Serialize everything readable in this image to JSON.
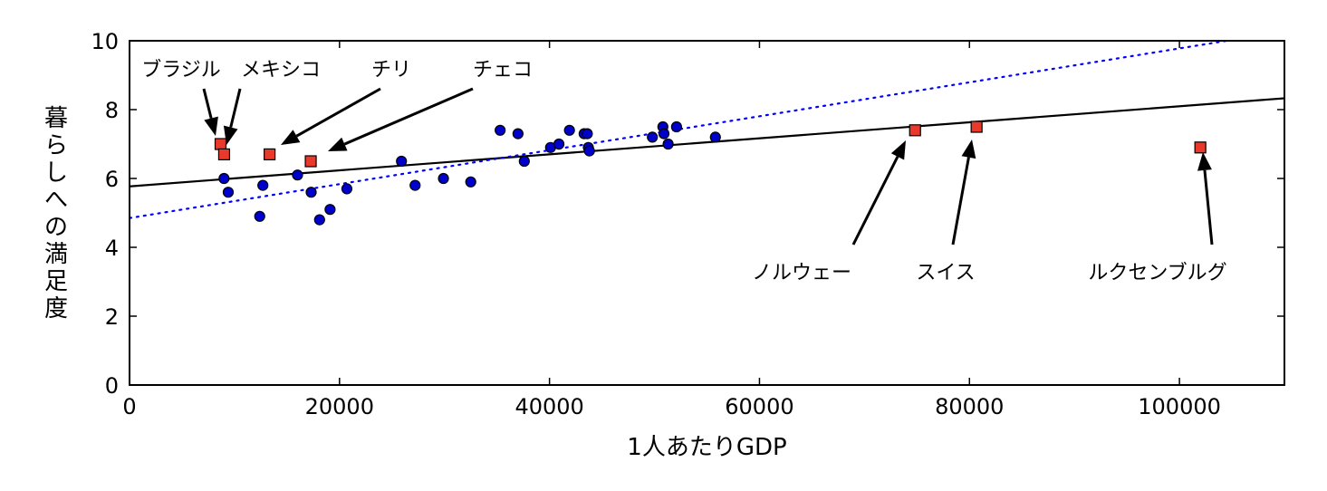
{
  "chart_data": {
    "type": "scatter",
    "xlabel": "1人あたりGDP",
    "ylabel": "暮らしへの満足度",
    "xlim": [
      0,
      110000
    ],
    "ylim": [
      0,
      10
    ],
    "x_ticks": [
      "0",
      "20000",
      "40000",
      "60000",
      "80000",
      "100000"
    ],
    "y_ticks": [
      "0",
      "2",
      "4",
      "6",
      "8",
      "10"
    ],
    "grid": false,
    "colors": {
      "points": "#0000cc",
      "outliers": "#e8392a",
      "solid_line": "#000000",
      "dotted_line": "#0000ff"
    },
    "points": [
      {
        "x": 9000,
        "y": 6.0
      },
      {
        "x": 9400,
        "y": 5.6
      },
      {
        "x": 12400,
        "y": 4.9
      },
      {
        "x": 12700,
        "y": 5.8
      },
      {
        "x": 16000,
        "y": 6.1
      },
      {
        "x": 17300,
        "y": 5.6
      },
      {
        "x": 18100,
        "y": 4.8
      },
      {
        "x": 19100,
        "y": 5.1
      },
      {
        "x": 20700,
        "y": 5.7
      },
      {
        "x": 25900,
        "y": 6.5
      },
      {
        "x": 27200,
        "y": 5.8
      },
      {
        "x": 29900,
        "y": 6.0
      },
      {
        "x": 32500,
        "y": 5.9
      },
      {
        "x": 35300,
        "y": 7.4
      },
      {
        "x": 37000,
        "y": 7.3
      },
      {
        "x": 37600,
        "y": 6.5
      },
      {
        "x": 40100,
        "y": 6.9
      },
      {
        "x": 40900,
        "y": 7.0
      },
      {
        "x": 41900,
        "y": 7.4
      },
      {
        "x": 43300,
        "y": 7.3
      },
      {
        "x": 43600,
        "y": 7.3
      },
      {
        "x": 43700,
        "y": 6.9
      },
      {
        "x": 43800,
        "y": 6.8
      },
      {
        "x": 49800,
        "y": 7.2
      },
      {
        "x": 50800,
        "y": 7.5
      },
      {
        "x": 50900,
        "y": 7.3
      },
      {
        "x": 51300,
        "y": 7.0
      },
      {
        "x": 52100,
        "y": 7.5
      },
      {
        "x": 55800,
        "y": 7.2
      }
    ],
    "outliers": [
      {
        "label": "ブラジル",
        "x": 8670,
        "y": 7.0
      },
      {
        "label": "メキシコ",
        "x": 9010,
        "y": 6.7
      },
      {
        "label": "チリ",
        "x": 13340,
        "y": 6.7
      },
      {
        "label": "チェコ",
        "x": 17260,
        "y": 6.5
      },
      {
        "label": "ノルウェー",
        "x": 74820,
        "y": 7.4
      },
      {
        "label": "スイス",
        "x": 80680,
        "y": 7.5
      },
      {
        "label": "ルクセンブルグ",
        "x": 101990,
        "y": 6.9
      }
    ],
    "lines": [
      {
        "style": "solid",
        "x": [
          0,
          110000
        ],
        "y": [
          5.77,
          8.33
        ]
      },
      {
        "style": "dotted",
        "x": [
          0,
          104500
        ],
        "y": [
          4.85,
          10.0
        ]
      }
    ]
  }
}
